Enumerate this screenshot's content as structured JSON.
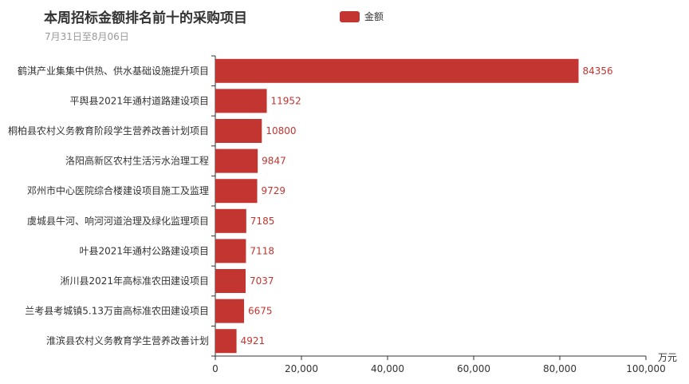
{
  "header": {
    "title": "本周招标金额排名前十的采购项目",
    "subtitle": "7月31日至8月06日"
  },
  "legend": {
    "label": "金额",
    "color": "#c23531"
  },
  "chart_data": {
    "type": "bar",
    "orientation": "horizontal",
    "xunit": "万元",
    "xlim": [
      0,
      100000
    ],
    "xticks": [
      "0",
      "20,000",
      "40,000",
      "60,000",
      "80,000",
      "100,000"
    ],
    "grid": false,
    "legend_position": "top-center",
    "series": [
      {
        "name": "金额",
        "color": "#c23531",
        "categories": [
          "鹤淇产业集集中供热、供水基础设施提升项目",
          "平舆县2021年通村道路建设项目",
          "桐柏县农村义务教育阶段学生营养改善计划项目",
          "洛阳高新区农村生活污水治理工程",
          "邓州市中心医院综合楼建设项目施工及监理",
          "虞城县牛河、响河河道治理及绿化监理项目",
          "叶县2021年通村公路建设项目",
          "淅川县2021年高标准农田建设项目",
          "兰考县考城镇5.13万亩高标准农田建设项目",
          "淮滨县农村义务教育学生营养改善计划"
        ],
        "values": [
          84356,
          11952,
          10800,
          9847,
          9729,
          7185,
          7118,
          7037,
          6675,
          4921
        ]
      }
    ]
  }
}
